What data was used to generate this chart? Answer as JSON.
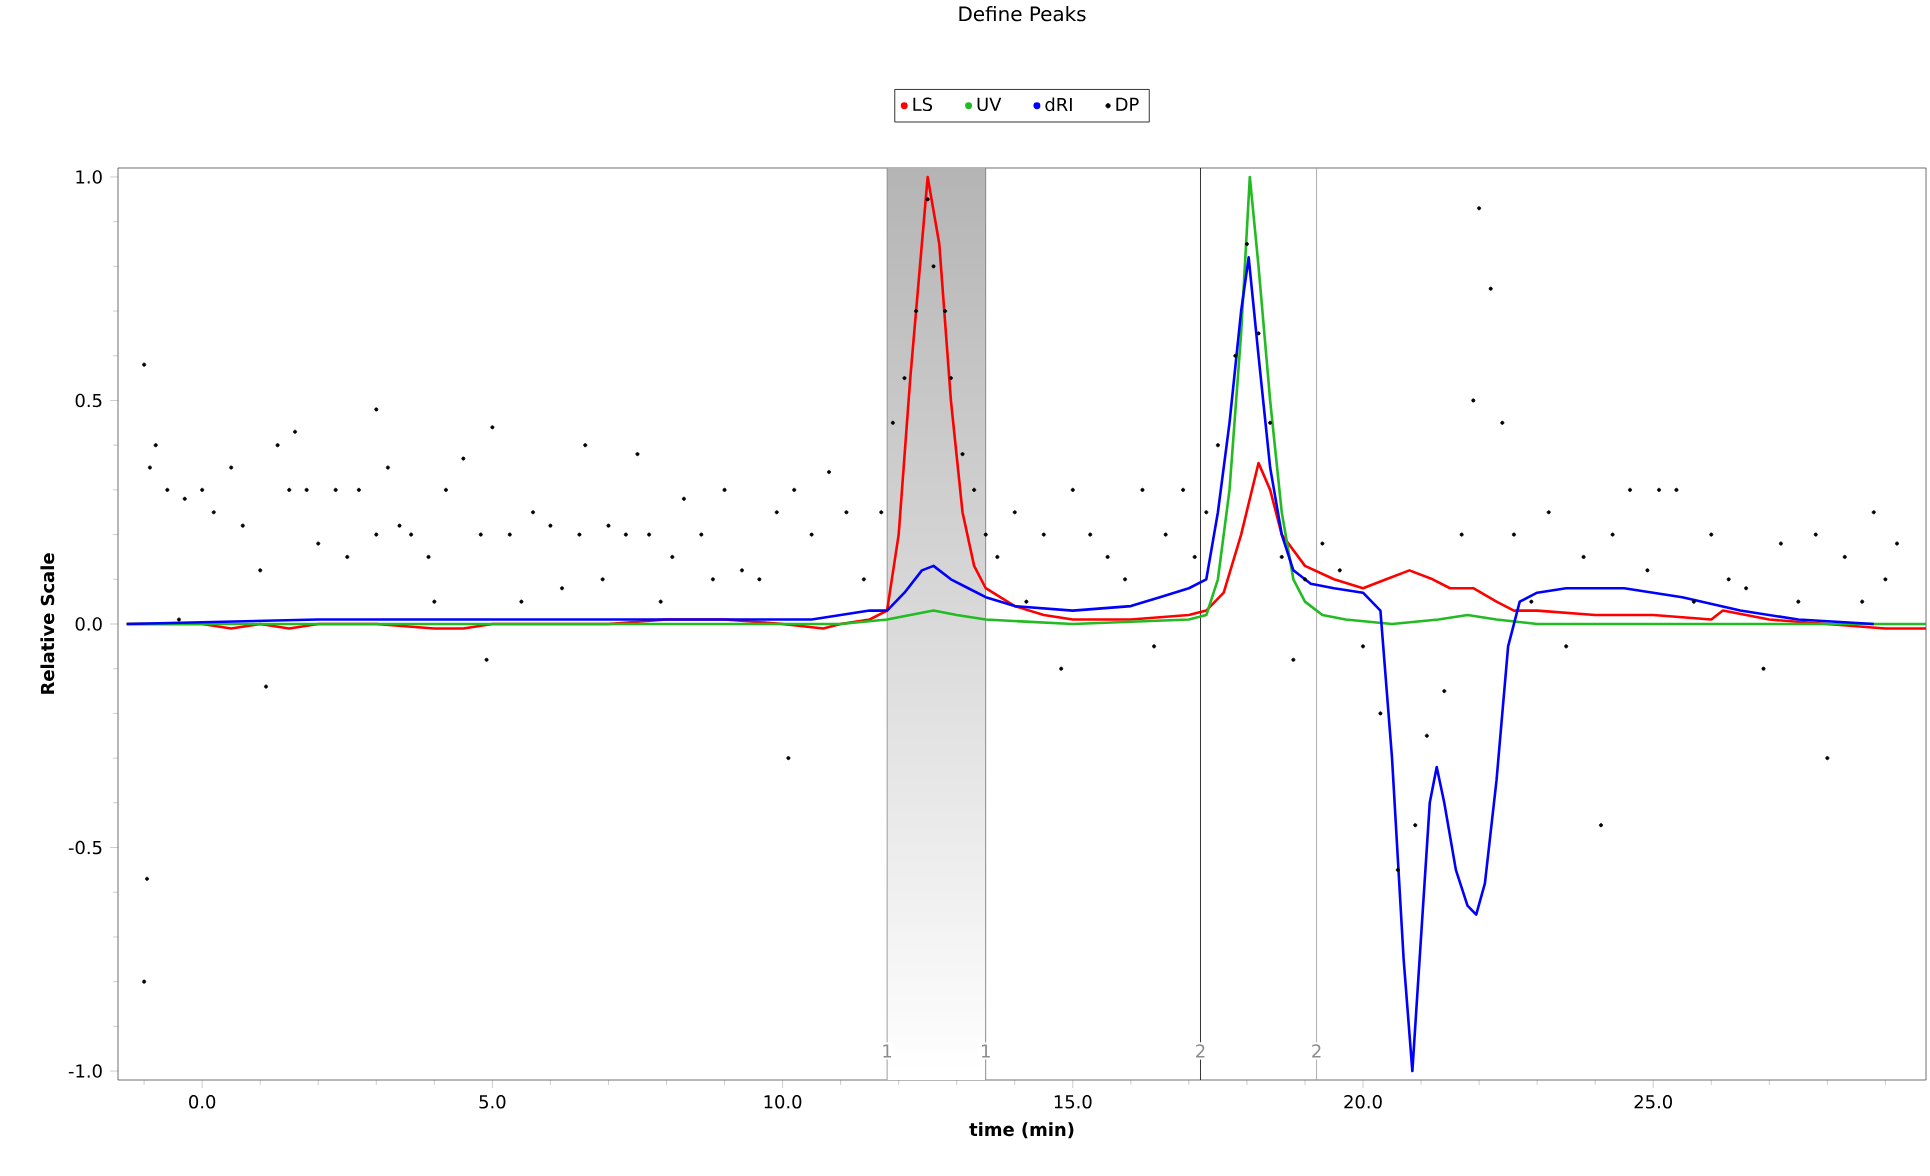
{
  "chart_data": {
    "type": "line",
    "title": "Define Peaks",
    "xlabel": "time (min)",
    "ylabel": "Relative Scale",
    "xlim": [
      -1.45,
      29.7
    ],
    "ylim": [
      -1.02,
      1.02
    ],
    "xticks": [
      {
        "value": -1,
        "label": null
      },
      {
        "value": 0,
        "label": "0.0"
      },
      {
        "value": 1,
        "label": null
      },
      {
        "value": 2,
        "label": null
      },
      {
        "value": 3,
        "label": null
      },
      {
        "value": 4,
        "label": null
      },
      {
        "value": 5,
        "label": "5.0"
      },
      {
        "value": 6,
        "label": null
      },
      {
        "value": 7,
        "label": null
      },
      {
        "value": 8,
        "label": null
      },
      {
        "value": 9,
        "label": null
      },
      {
        "value": 10,
        "label": "10.0"
      },
      {
        "value": 11,
        "label": null
      },
      {
        "value": 12,
        "label": null
      },
      {
        "value": 13,
        "label": null
      },
      {
        "value": 14,
        "label": null
      },
      {
        "value": 15,
        "label": "15.0"
      },
      {
        "value": 16,
        "label": null
      },
      {
        "value": 17,
        "label": null
      },
      {
        "value": 18,
        "label": null
      },
      {
        "value": 19,
        "label": null
      },
      {
        "value": 20,
        "label": "20.0"
      },
      {
        "value": 21,
        "label": null
      },
      {
        "value": 22,
        "label": null
      },
      {
        "value": 23,
        "label": null
      },
      {
        "value": 24,
        "label": null
      },
      {
        "value": 25,
        "label": "25.0"
      },
      {
        "value": 26,
        "label": null
      },
      {
        "value": 27,
        "label": null
      },
      {
        "value": 28,
        "label": null
      },
      {
        "value": 29,
        "label": null
      }
    ],
    "yticks": [
      {
        "value": -1,
        "label": "-1.0"
      },
      {
        "value": -0.9,
        "label": null
      },
      {
        "value": -0.8,
        "label": null
      },
      {
        "value": -0.7,
        "label": null
      },
      {
        "value": -0.6,
        "label": null
      },
      {
        "value": -0.5,
        "label": "-0.5"
      },
      {
        "value": -0.4,
        "label": null
      },
      {
        "value": -0.3,
        "label": null
      },
      {
        "value": -0.2,
        "label": null
      },
      {
        "value": -0.1,
        "label": null
      },
      {
        "value": 0,
        "label": "0.0"
      },
      {
        "value": 0.1,
        "label": null
      },
      {
        "value": 0.2,
        "label": null
      },
      {
        "value": 0.3,
        "label": null
      },
      {
        "value": 0.4,
        "label": null
      },
      {
        "value": 0.5,
        "label": "0.5"
      },
      {
        "value": 0.6,
        "label": null
      },
      {
        "value": 0.7,
        "label": null
      },
      {
        "value": 0.8,
        "label": null
      },
      {
        "value": 0.9,
        "label": null
      },
      {
        "value": 1,
        "label": "1.0"
      }
    ],
    "grid": false,
    "legend": "top",
    "marker": "none",
    "line_style": "solid",
    "bands": [
      {
        "axis": "x",
        "from": 11.8,
        "to": 13.5,
        "color": "#b4b4b4"
      }
    ],
    "ref_lines": [
      {
        "axis": "x",
        "value": 11.8,
        "color": "#999999"
      },
      {
        "axis": "x",
        "value": 13.5,
        "color": "#999999"
      },
      {
        "axis": "x",
        "value": 17.2,
        "color": "#000000"
      },
      {
        "axis": "x",
        "value": 19.2,
        "color": "#999999"
      }
    ],
    "annotations": [
      {
        "text": "1",
        "x": 11.8,
        "y": -0.955
      },
      {
        "text": "1",
        "x": 13.5,
        "y": -0.955
      },
      {
        "text": "2",
        "x": 17.2,
        "y": -0.955
      },
      {
        "text": "2",
        "x": 19.2,
        "y": -0.955
      }
    ],
    "series": [
      {
        "name": "LS",
        "color": "#ff0000",
        "x": [
          -1.3,
          0,
          0.5,
          1,
          1.5,
          2,
          3,
          4,
          4.5,
          5,
          6,
          7,
          8,
          9,
          10,
          10.7,
          11,
          11.5,
          11.8,
          12.0,
          12.2,
          12.5,
          12.7,
          12.9,
          13.1,
          13.3,
          13.5,
          14,
          14.5,
          15,
          16,
          17,
          17.3,
          17.6,
          17.9,
          18.2,
          18.4,
          18.6,
          19,
          19.5,
          20,
          20.4,
          20.8,
          21.2,
          21.5,
          21.9,
          22.3,
          22.6,
          23,
          24,
          25,
          26,
          26.2,
          27,
          28,
          29,
          29.7
        ],
        "values": [
          0,
          0,
          -0.01,
          0,
          -0.01,
          0,
          0,
          -0.01,
          -0.01,
          0,
          0,
          0,
          0.01,
          0.01,
          0,
          -0.01,
          0,
          0.01,
          0.03,
          0.2,
          0.55,
          1.0,
          0.85,
          0.5,
          0.25,
          0.13,
          0.08,
          0.04,
          0.02,
          0.01,
          0.01,
          0.02,
          0.03,
          0.07,
          0.2,
          0.36,
          0.3,
          0.2,
          0.13,
          0.1,
          0.08,
          0.1,
          0.12,
          0.1,
          0.08,
          0.08,
          0.05,
          0.03,
          0.03,
          0.02,
          0.02,
          0.01,
          0.03,
          0.01,
          0.0,
          -0.01,
          -0.01
        ]
      },
      {
        "name": "UV",
        "color": "#22bb22",
        "x": [
          -1.3,
          5,
          11,
          11.8,
          12.2,
          12.6,
          13.0,
          13.5,
          15,
          17,
          17.3,
          17.5,
          17.7,
          17.9,
          18.05,
          18.2,
          18.4,
          18.6,
          18.8,
          19.0,
          19.3,
          19.7,
          20.5,
          21.3,
          21.8,
          22.3,
          23,
          29.7
        ],
        "values": [
          0,
          0,
          0,
          0.01,
          0.02,
          0.03,
          0.02,
          0.01,
          0,
          0.01,
          0.02,
          0.1,
          0.3,
          0.65,
          1.0,
          0.8,
          0.5,
          0.25,
          0.1,
          0.05,
          0.02,
          0.01,
          0,
          0.01,
          0.02,
          0.01,
          0,
          0
        ]
      },
      {
        "name": "dRI",
        "color": "#0000ff",
        "x": [
          -1.3,
          2,
          5,
          8,
          10,
          10.5,
          11,
          11.5,
          11.8,
          12.1,
          12.4,
          12.6,
          12.9,
          13.2,
          13.5,
          14,
          15,
          16,
          16.5,
          17,
          17.3,
          17.5,
          17.7,
          17.9,
          18.03,
          18.2,
          18.4,
          18.6,
          18.8,
          19.1,
          19.5,
          20.0,
          20.3,
          20.5,
          20.7,
          20.85,
          21.0,
          21.15,
          21.27,
          21.4,
          21.6,
          21.8,
          21.95,
          22.1,
          22.3,
          22.5,
          22.7,
          23.0,
          23.5,
          24.5,
          25.5,
          26.5,
          27.5,
          28.8
        ],
        "values": [
          0,
          0.01,
          0.01,
          0.01,
          0.01,
          0.01,
          0.02,
          0.03,
          0.03,
          0.07,
          0.12,
          0.13,
          0.1,
          0.08,
          0.06,
          0.04,
          0.03,
          0.04,
          0.06,
          0.08,
          0.1,
          0.25,
          0.45,
          0.7,
          0.82,
          0.6,
          0.35,
          0.2,
          0.12,
          0.09,
          0.08,
          0.07,
          0.03,
          -0.3,
          -0.75,
          -1.0,
          -0.7,
          -0.4,
          -0.32,
          -0.4,
          -0.55,
          -0.63,
          -0.65,
          -0.58,
          -0.35,
          -0.05,
          0.05,
          0.07,
          0.08,
          0.08,
          0.06,
          0.03,
          0.01,
          0.0
        ]
      },
      {
        "name": "DP",
        "type": "scatter",
        "marker": "circle",
        "color": "#000000",
        "x": [
          -1.0,
          -1.0,
          -0.95,
          -0.9,
          -0.8,
          -0.6,
          -0.4,
          -0.3,
          0.0,
          0.2,
          0.5,
          0.7,
          1.0,
          1.1,
          1.3,
          1.5,
          1.6,
          1.8,
          2.0,
          2.3,
          2.5,
          2.7,
          3.0,
          3.0,
          3.2,
          3.4,
          3.6,
          3.9,
          4.0,
          4.2,
          4.5,
          4.8,
          4.9,
          5.0,
          5.3,
          5.5,
          5.7,
          6.0,
          6.2,
          6.5,
          6.6,
          6.9,
          7.0,
          7.3,
          7.5,
          7.7,
          7.9,
          8.1,
          8.3,
          8.6,
          8.8,
          9.0,
          9.3,
          9.6,
          9.9,
          10.1,
          10.2,
          10.5,
          10.8,
          11.1,
          11.4,
          11.7,
          11.9,
          12.1,
          12.3,
          12.5,
          12.6,
          12.8,
          12.9,
          13.1,
          13.3,
          13.5,
          13.7,
          14.0,
          14.2,
          14.5,
          14.8,
          15.0,
          15.3,
          15.6,
          15.9,
          16.2,
          16.4,
          16.6,
          16.9,
          17.1,
          17.3,
          17.5,
          17.8,
          18.0,
          18.2,
          18.4,
          18.6,
          18.8,
          19.0,
          19.3,
          19.6,
          20.0,
          20.3,
          20.6,
          20.9,
          21.1,
          21.4,
          21.7,
          21.9,
          22.0,
          22.2,
          22.4,
          22.6,
          22.9,
          23.2,
          23.5,
          23.8,
          24.1,
          24.3,
          24.6,
          24.9,
          25.1,
          25.4,
          25.7,
          26.0,
          26.3,
          26.6,
          26.9,
          27.2,
          27.5,
          27.8,
          28.0,
          28.3,
          28.6,
          28.8,
          29.0,
          29.2
        ],
        "values": [
          0.58,
          -0.8,
          -0.57,
          0.35,
          0.4,
          0.3,
          0.01,
          0.28,
          0.3,
          0.25,
          0.35,
          0.22,
          0.12,
          -0.14,
          0.4,
          0.3,
          0.43,
          0.3,
          0.18,
          0.3,
          0.15,
          0.3,
          0.2,
          0.48,
          0.35,
          0.22,
          0.2,
          0.15,
          0.05,
          0.3,
          0.37,
          0.2,
          -0.08,
          0.44,
          0.2,
          0.05,
          0.25,
          0.22,
          0.08,
          0.2,
          0.4,
          0.1,
          0.22,
          0.2,
          0.38,
          0.2,
          0.05,
          0.15,
          0.28,
          0.2,
          0.1,
          0.3,
          0.12,
          0.1,
          0.25,
          -0.3,
          0.3,
          0.2,
          0.34,
          0.25,
          0.1,
          0.25,
          0.45,
          0.55,
          0.7,
          0.95,
          0.8,
          0.7,
          0.55,
          0.38,
          0.3,
          0.2,
          0.15,
          0.25,
          0.05,
          0.2,
          -0.1,
          0.3,
          0.2,
          0.15,
          0.1,
          0.3,
          -0.05,
          0.2,
          0.3,
          0.15,
          0.25,
          0.4,
          0.6,
          0.85,
          0.65,
          0.45,
          0.15,
          -0.08,
          0.1,
          0.18,
          0.12,
          -0.05,
          -0.2,
          -0.55,
          -0.45,
          -0.25,
          -0.15,
          0.2,
          0.5,
          0.93,
          0.75,
          0.45,
          0.2,
          0.05,
          0.25,
          -0.05,
          0.15,
          -0.45,
          0.2,
          0.3,
          0.12,
          0.3,
          0.3,
          0.05,
          0.2,
          0.1,
          0.08,
          -0.1,
          0.18,
          0.05,
          0.2,
          -0.3,
          0.15,
          0.05,
          0.25,
          0.1,
          0.18
        ]
      }
    ]
  }
}
